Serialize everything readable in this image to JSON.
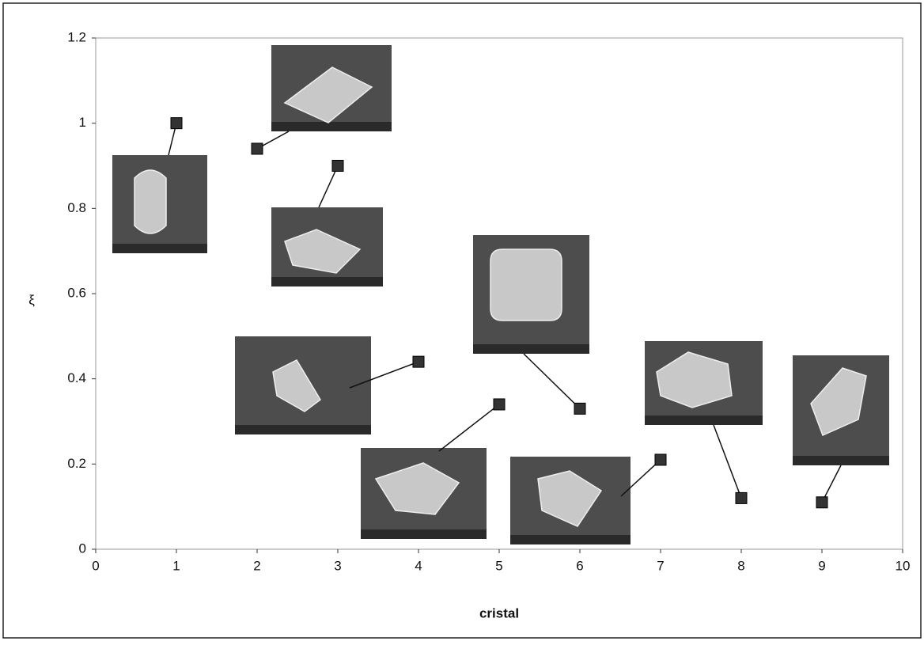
{
  "chart_data": {
    "type": "scatter",
    "x_label": "cristal",
    "y_label": "ξ",
    "x": [
      1,
      2,
      3,
      4,
      5,
      6,
      7,
      8,
      9
    ],
    "values": [
      1.0,
      0.94,
      0.9,
      0.44,
      0.34,
      0.33,
      0.21,
      0.12,
      0.11
    ],
    "color": "#333333",
    "xlim": [
      0,
      10
    ],
    "xticks": [
      0,
      1,
      2,
      3,
      4,
      5,
      6,
      7,
      8,
      9,
      10
    ],
    "ylim": [
      0,
      1.2
    ],
    "yticks": [
      0,
      0.2,
      0.4,
      0.6,
      0.8,
      1,
      1.2
    ],
    "grid": false
  }
}
